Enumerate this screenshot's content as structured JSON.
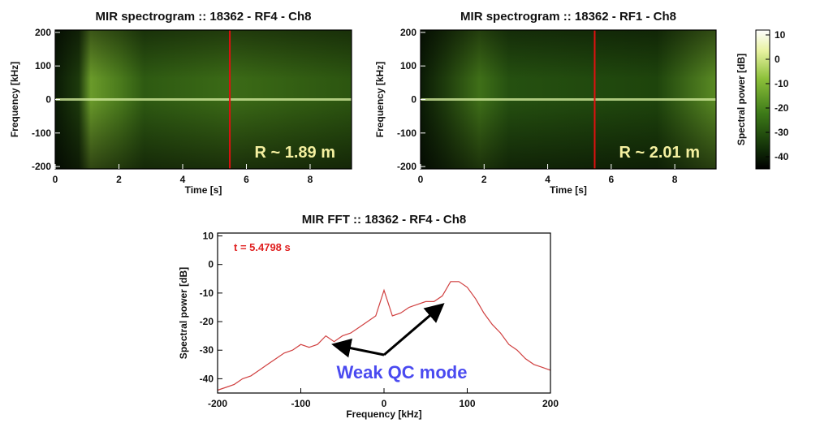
{
  "chart_data": [
    {
      "type": "spectrogram",
      "title": "MIR spectrogram :: 18362 - RF4 - Ch8",
      "x_label": "Time [s]",
      "y_label": "Frequency [kHz]",
      "xlim": [
        0,
        9.3
      ],
      "xticks": [
        0,
        2,
        4,
        6,
        8
      ],
      "ylim": [
        -207,
        207
      ],
      "yticks": [
        -200,
        -100,
        0,
        100,
        200
      ],
      "marker_time": 5.4798,
      "marker_color": "#e01010",
      "annotation": "R ~ 1.89 m"
    },
    {
      "type": "spectrogram",
      "title": "MIR spectrogram :: 18362 - RF1 - Ch8",
      "x_label": "Time [s]",
      "y_label": "Frequency [kHz]",
      "xlim": [
        0,
        9.3
      ],
      "xticks": [
        0,
        2,
        4,
        6,
        8
      ],
      "ylim": [
        -207,
        207
      ],
      "yticks": [
        -200,
        -100,
        0,
        100,
        200
      ],
      "marker_time": 5.4798,
      "marker_color": "#e01010",
      "annotation": "R ~ 2.01 m",
      "colorbar": {
        "label": "Spectral power [dB]",
        "lim": [
          -45,
          12
        ],
        "ticks": [
          -40,
          -30,
          -20,
          -10,
          0,
          10
        ]
      }
    },
    {
      "type": "line",
      "title": "MIR FFT :: 18362 - RF4 - Ch8",
      "x_label": "Frequency [kHz]",
      "y_label": "Spectral power [dB]",
      "xlim": [
        -200,
        200
      ],
      "xticks": [
        -200,
        -100,
        0,
        100,
        200
      ],
      "ylim": [
        -45,
        11
      ],
      "yticks": [
        -40,
        -30,
        -20,
        -10,
        0,
        10
      ],
      "x": [
        -200,
        -190,
        -180,
        -170,
        -160,
        -150,
        -140,
        -130,
        -120,
        -110,
        -100,
        -90,
        -80,
        -70,
        -60,
        -50,
        -40,
        -30,
        -20,
        -10,
        0,
        10,
        20,
        30,
        40,
        50,
        60,
        70,
        80,
        90,
        100,
        110,
        120,
        130,
        140,
        150,
        160,
        170,
        180,
        190,
        200
      ],
      "values": [
        -44,
        -43,
        -42,
        -40,
        -39,
        -37,
        -35,
        -33,
        -31,
        -30,
        -28,
        -29,
        -28,
        -25,
        -27,
        -25,
        -24,
        -22,
        -20,
        -18,
        -9,
        -18,
        -17,
        -15,
        -14,
        -13,
        -13,
        -11,
        -6,
        -6,
        -8,
        -12,
        -17,
        -21,
        -24,
        -28,
        -30,
        -33,
        -35,
        -36,
        -37
      ],
      "color": "#d04040",
      "time_label": "t = 5.4798 s",
      "annotation": "Weak QC mode"
    }
  ]
}
